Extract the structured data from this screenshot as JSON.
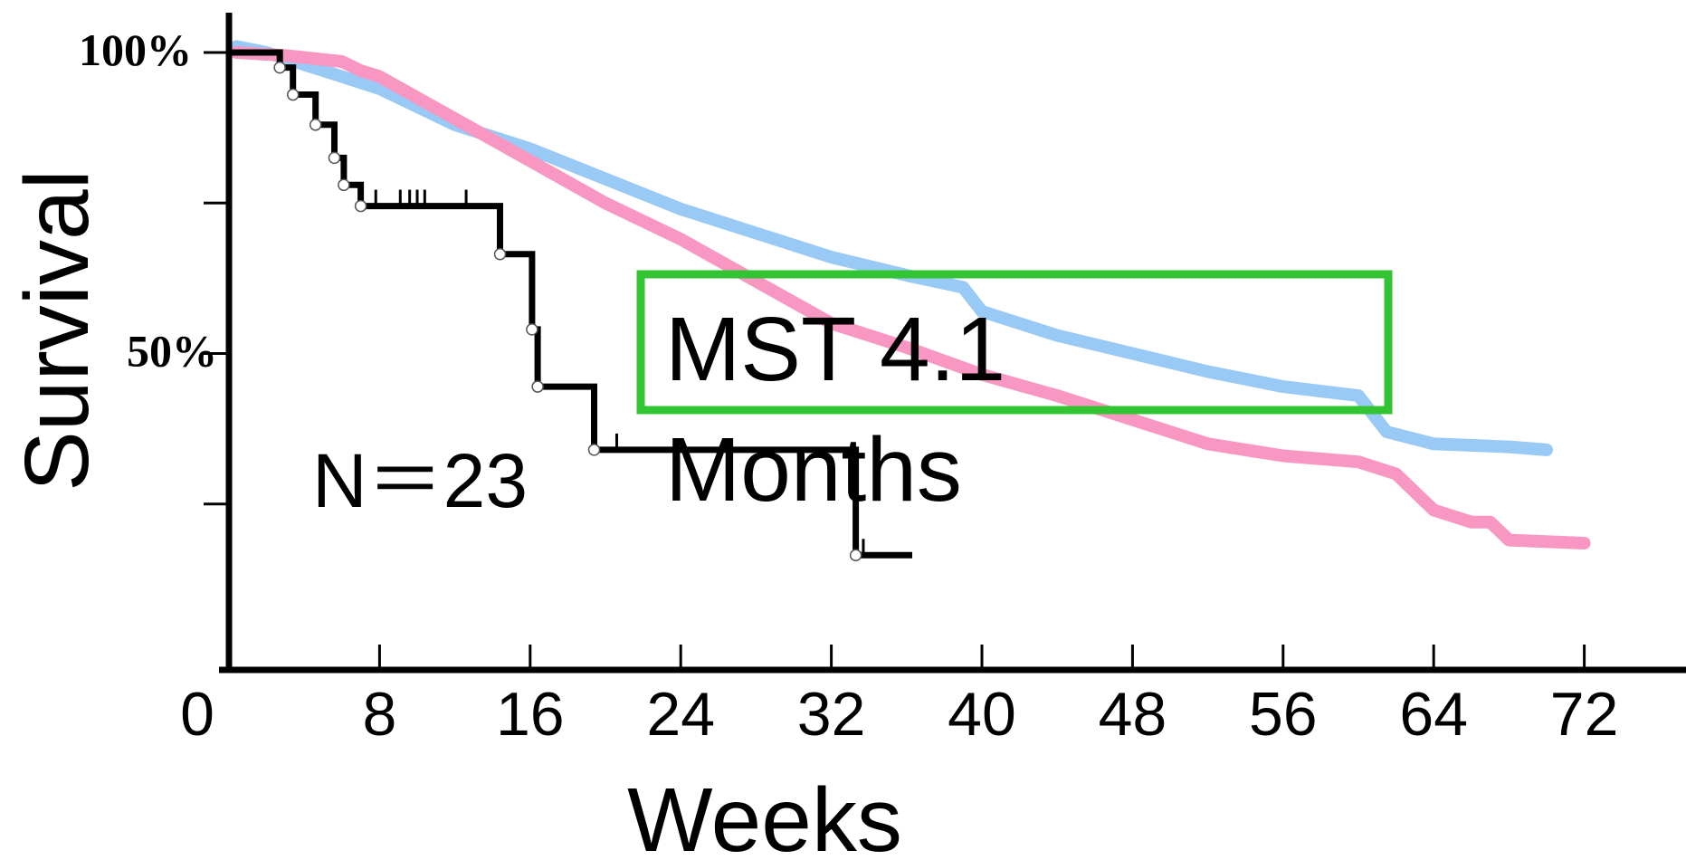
{
  "chart_data": {
    "type": "line",
    "title": "",
    "xlabel": "Weeks",
    "ylabel": "Survival",
    "xlim": [
      0,
      80
    ],
    "ylim": [
      0,
      100
    ],
    "x_ticks": [
      0,
      8,
      16,
      24,
      32,
      40,
      48,
      56,
      64,
      72
    ],
    "y_tick_labels": [
      {
        "value": 100,
        "label": "100%"
      },
      {
        "value": 50,
        "label": "50%"
      }
    ],
    "y_minor_ticks": [
      25,
      75
    ],
    "grid": false,
    "annotations": {
      "n_label": "N＝23",
      "mst_line1": "MST 4.1",
      "mst_line2": "Months"
    },
    "colors": {
      "study": "#000000",
      "blue_ref": "#99c9f5",
      "pink_ref": "#f797c2",
      "mst_box": "#33c433"
    },
    "series": [
      {
        "key": "study",
        "step": true,
        "points": [
          [
            0,
            100
          ],
          [
            2.7,
            100
          ],
          [
            2.7,
            97.5
          ],
          [
            3.4,
            97.5
          ],
          [
            3.4,
            93
          ],
          [
            4.6,
            93
          ],
          [
            4.6,
            88
          ],
          [
            5.6,
            88
          ],
          [
            5.6,
            82.5
          ],
          [
            6.1,
            82.5
          ],
          [
            6.1,
            78
          ],
          [
            7.0,
            78
          ],
          [
            7.0,
            74.5
          ],
          [
            14.4,
            74.5
          ],
          [
            14.4,
            66.5
          ],
          [
            16.1,
            66.5
          ],
          [
            16.1,
            54
          ],
          [
            16.4,
            54
          ],
          [
            16.4,
            44.5
          ],
          [
            19.4,
            44.5
          ],
          [
            19.4,
            34
          ],
          [
            33.3,
            34
          ],
          [
            33.3,
            16.5
          ],
          [
            36.3,
            16.5
          ]
        ],
        "events": [
          [
            2.7,
            97.5
          ],
          [
            3.4,
            93
          ],
          [
            4.6,
            88
          ],
          [
            5.6,
            82.5
          ],
          [
            6.1,
            78
          ],
          [
            7.0,
            74.5
          ],
          [
            14.4,
            66.5
          ],
          [
            16.1,
            54
          ],
          [
            16.4,
            44.5
          ],
          [
            19.4,
            34
          ],
          [
            33.3,
            16.5
          ]
        ],
        "censored": [
          [
            7.8,
            74.5
          ],
          [
            9.1,
            74.5
          ],
          [
            9.6,
            74.5
          ],
          [
            10.0,
            74.5
          ],
          [
            10.4,
            74.5
          ],
          [
            12.6,
            74.5
          ],
          [
            20.6,
            34
          ],
          [
            33.7,
            16.5
          ]
        ]
      },
      {
        "key": "blue_ref",
        "points": [
          [
            0.4,
            101
          ],
          [
            2,
            100
          ],
          [
            4,
            98
          ],
          [
            8,
            94
          ],
          [
            12,
            88
          ],
          [
            16,
            84
          ],
          [
            20,
            79
          ],
          [
            24,
            74
          ],
          [
            28,
            70
          ],
          [
            32,
            66
          ],
          [
            36,
            63
          ],
          [
            39,
            61
          ],
          [
            40,
            57
          ],
          [
            44,
            53
          ],
          [
            48,
            50
          ],
          [
            52,
            47
          ],
          [
            56,
            44.5
          ],
          [
            60,
            43
          ],
          [
            61.5,
            37
          ],
          [
            64,
            35
          ],
          [
            68,
            34.5
          ],
          [
            70,
            34
          ]
        ]
      },
      {
        "key": "pink_ref",
        "points": [
          [
            0.4,
            100
          ],
          [
            3,
            99.5
          ],
          [
            6,
            98.5
          ],
          [
            7,
            97
          ],
          [
            8,
            96
          ],
          [
            12,
            89
          ],
          [
            16,
            82
          ],
          [
            20,
            75
          ],
          [
            24,
            69
          ],
          [
            28,
            62
          ],
          [
            32,
            55
          ],
          [
            36,
            51
          ],
          [
            40,
            46.5
          ],
          [
            44,
            43
          ],
          [
            48,
            39
          ],
          [
            52,
            35
          ],
          [
            56,
            33
          ],
          [
            60,
            32
          ],
          [
            62,
            30
          ],
          [
            64,
            24
          ],
          [
            66,
            22
          ],
          [
            67,
            22
          ],
          [
            68,
            19
          ],
          [
            72,
            18.5
          ]
        ]
      }
    ]
  }
}
